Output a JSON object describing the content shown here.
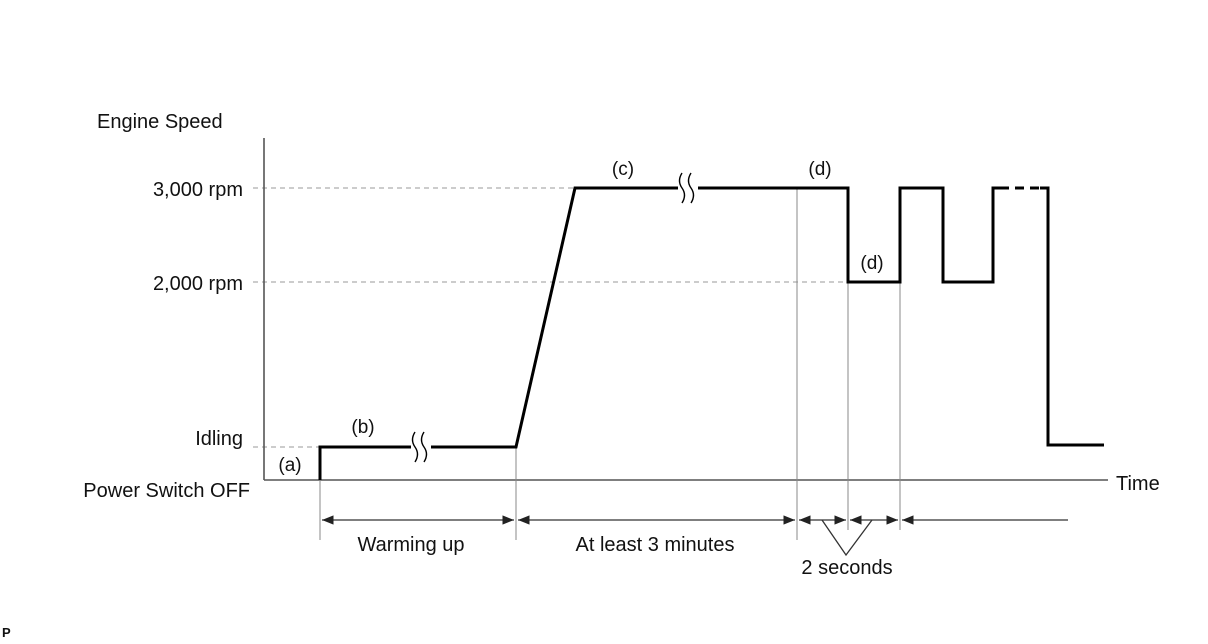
{
  "diagram": {
    "y_axis_title": "Engine Speed",
    "x_axis_title": "Time",
    "levels": {
      "rpm_3000": "3,000 rpm",
      "rpm_2000": "2,000 rpm",
      "idling": "Idling",
      "off": "Power Switch OFF"
    },
    "steps": {
      "a": "(a)",
      "b": "(b)",
      "c": "(c)",
      "d_high": "(d)",
      "d_low": "(d)"
    },
    "durations": {
      "warming_up": "Warming up",
      "at_least_3_minutes": "At least 3 minutes",
      "two_seconds": "2 seconds"
    },
    "corner_mark": "P"
  }
}
